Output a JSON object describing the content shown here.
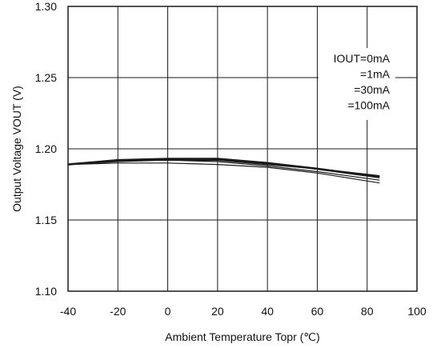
{
  "chart_data": {
    "type": "line",
    "title": "",
    "xlabel": "Ambient Temperature Topr (℃)",
    "ylabel": "Output Voltage VOUT (V)",
    "xlim": [
      -40,
      100
    ],
    "ylim": [
      1.1,
      1.3
    ],
    "x_ticks": [
      "-40",
      "-20",
      "0",
      "20",
      "40",
      "60",
      "80",
      "100"
    ],
    "y_ticks": [
      "1.10",
      "1.15",
      "1.20",
      "1.25",
      "1.30"
    ],
    "grid": true,
    "legend_position": "top-right",
    "series": [
      {
        "name": "IOUT=0mA",
        "x": [
          -40,
          -20,
          0,
          20,
          40,
          60,
          85
        ],
        "y": [
          1.189,
          1.19,
          1.19,
          1.189,
          1.187,
          1.183,
          1.176
        ]
      },
      {
        "name": "=1mA",
        "x": [
          -40,
          -20,
          0,
          20,
          40,
          60,
          85
        ],
        "y": [
          1.189,
          1.191,
          1.192,
          1.191,
          1.188,
          1.184,
          1.178
        ]
      },
      {
        "name": "=30mA",
        "x": [
          -40,
          -20,
          0,
          20,
          40,
          60,
          85
        ],
        "y": [
          1.189,
          1.192,
          1.192,
          1.192,
          1.189,
          1.186,
          1.181
        ]
      },
      {
        "name": "=100mA",
        "x": [
          -40,
          -20,
          0,
          20,
          40,
          60,
          85
        ],
        "y": [
          1.189,
          1.192,
          1.193,
          1.193,
          1.19,
          1.186,
          1.18
        ]
      }
    ]
  },
  "colors": {
    "line": "#1a1a1a",
    "grid": "#1a1a1a",
    "background": "#ffffff"
  }
}
